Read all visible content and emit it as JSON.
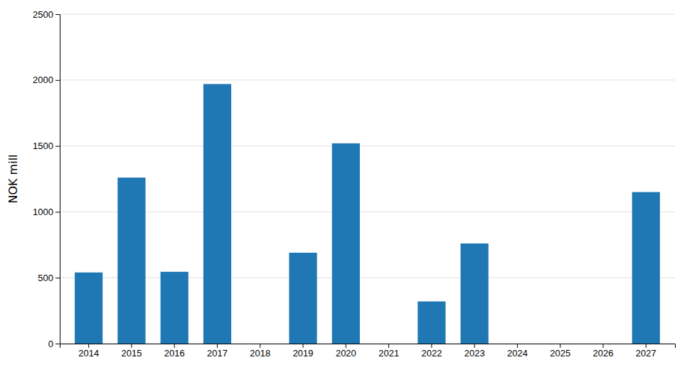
{
  "chart_data": {
    "type": "bar",
    "ylabel": "NOK mill",
    "categories": [
      "2014",
      "2015",
      "2016",
      "2017",
      "2018",
      "2019",
      "2020",
      "2021",
      "2022",
      "2023",
      "2024",
      "2025",
      "2026",
      "2027"
    ],
    "values": [
      540,
      1260,
      545,
      1970,
      0,
      690,
      1520,
      0,
      320,
      760,
      0,
      0,
      0,
      1150
    ],
    "ylim": [
      0,
      2500
    ],
    "yticks": [
      0,
      500,
      1000,
      1500,
      2000,
      2500
    ],
    "grid": true
  }
}
